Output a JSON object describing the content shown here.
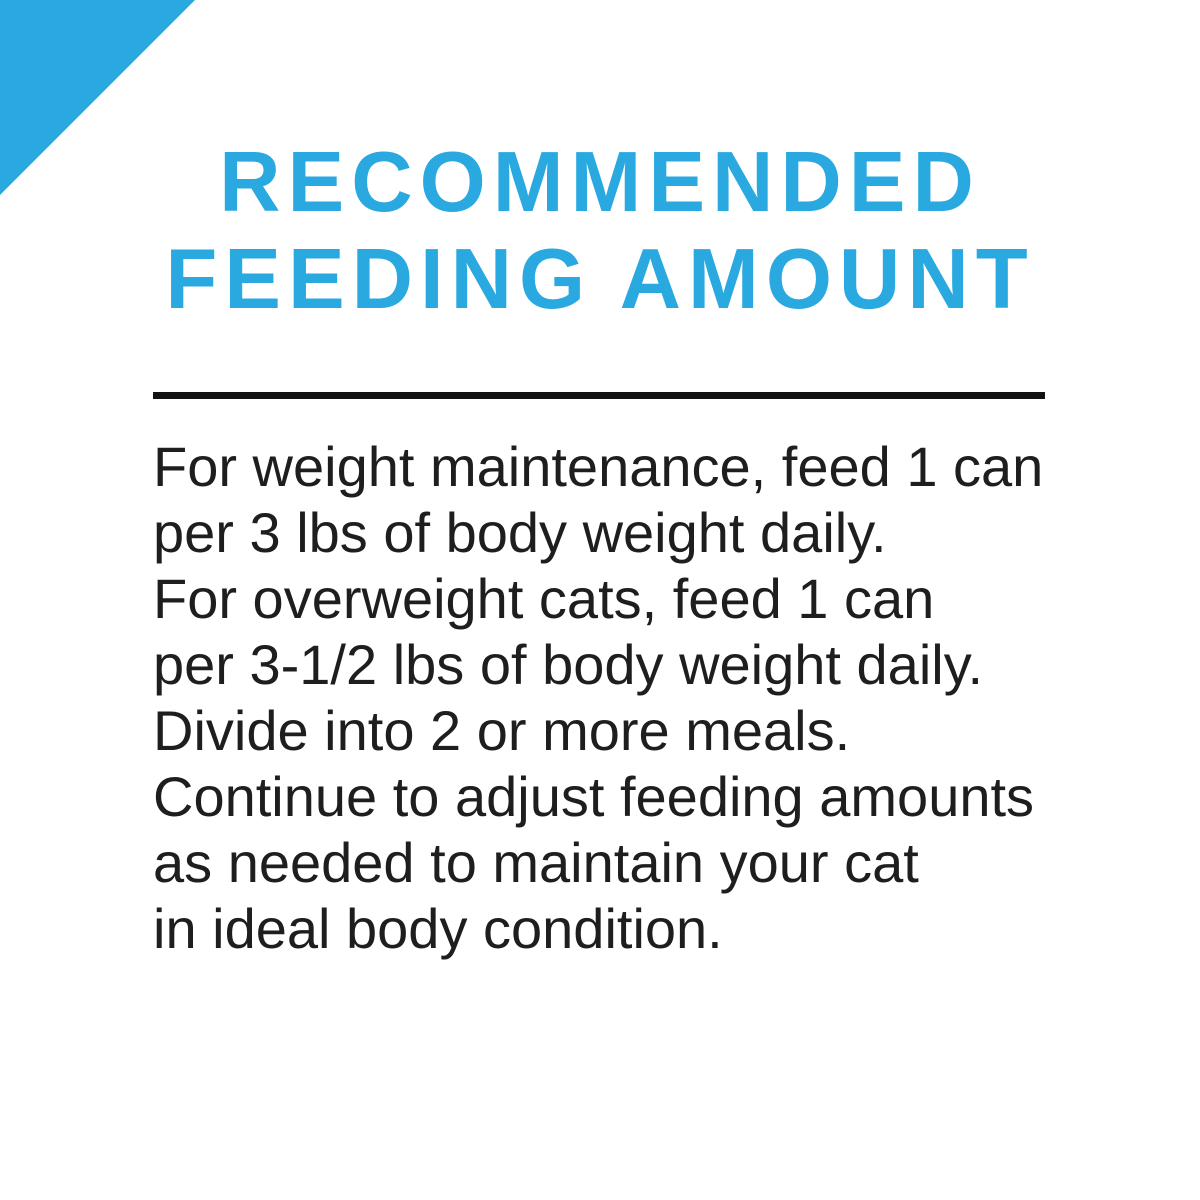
{
  "page": {
    "title": {
      "line1": "RECOMMENDED",
      "line2": "FEEDING AMOUNT"
    },
    "body": {
      "lines": [
        "For weight maintenance, feed 1 can",
        "per 3 lbs of body weight daily.",
        "For overweight cats, feed 1 can",
        "per 3-1/2 lbs of body weight daily.",
        "Divide into 2 or more meals.",
        "Continue to adjust feeding amounts",
        "as needed to maintain your cat",
        "in ideal body condition."
      ]
    },
    "colors": {
      "accent_blue": "#29a9e0",
      "body_text": "#1e1e1e",
      "divider": "#121212",
      "background": "#ffffff"
    }
  }
}
